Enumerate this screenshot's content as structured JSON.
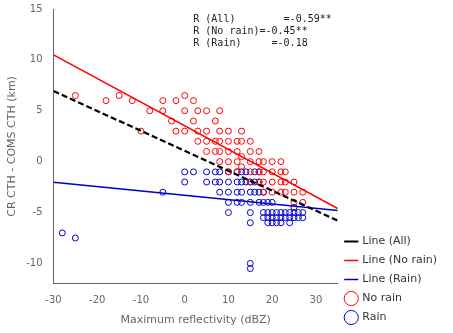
{
  "chart_data": {
    "type": "scatter",
    "xlabel": "Maximum reflectivity (dBZ)",
    "ylabel": "CR CTH - COMS CTH (km)",
    "xlim": [
      -30,
      35
    ],
    "ylim": [
      -12,
      15
    ],
    "xticks": [
      -30,
      -20,
      -10,
      0,
      10,
      20,
      30
    ],
    "yticks": [
      -10,
      -5,
      0,
      5,
      10,
      15
    ],
    "grid": false,
    "legend": "lower right",
    "annotations": [
      "R (All)        =-0.59**",
      "R (No rain)=-0.45**",
      "R (Rain)     =-0.18"
    ],
    "series": [
      {
        "name": "No rain",
        "type": "scatter",
        "marker": "circle",
        "color": "#FF0000",
        "x": [
          -25,
          -18,
          -15,
          -12,
          -10,
          -8,
          -5,
          -5,
          -3,
          -2,
          -2,
          0,
          0,
          0,
          2,
          2,
          3,
          3,
          3,
          5,
          5,
          5,
          5,
          7,
          7,
          7,
          8,
          8,
          8,
          8,
          8,
          10,
          10,
          10,
          10,
          10,
          12,
          12,
          12,
          12,
          13,
          13,
          13,
          13,
          15,
          15,
          15,
          15,
          15,
          17,
          17,
          17,
          17,
          18,
          18,
          18,
          18,
          20,
          20,
          20,
          20,
          22,
          22,
          22,
          22,
          23,
          23,
          23,
          25,
          25,
          25,
          27,
          27
        ],
        "values": [
          6.5,
          6.0,
          6.5,
          6.0,
          3.0,
          5.0,
          5.0,
          6.0,
          4.0,
          3.0,
          6.0,
          3.0,
          5.0,
          6.5,
          4.0,
          6.0,
          2.0,
          3.0,
          5.0,
          1.0,
          2.0,
          3.0,
          5.0,
          1.0,
          2.0,
          4.0,
          0.0,
          1.0,
          2.0,
          3.0,
          5.0,
          -1.0,
          0.0,
          1.0,
          2.0,
          3.0,
          -1.0,
          0.0,
          1.0,
          2.0,
          -0.5,
          0.5,
          2.0,
          3.0,
          -2.0,
          -1.0,
          0.0,
          1.0,
          2.0,
          -2.0,
          -1.0,
          0.0,
          1.0,
          -3.0,
          -2.0,
          -1.0,
          0.0,
          -3.0,
          -2.0,
          -1.0,
          0.0,
          -3.0,
          -2.0,
          -1.0,
          0.0,
          -3.0,
          -2.0,
          -1.0,
          -4.0,
          -3.0,
          -2.0,
          -4.0,
          -3.0
        ]
      },
      {
        "name": "Rain",
        "type": "scatter",
        "marker": "circle",
        "color": "#0000CC",
        "x": [
          -28,
          -25,
          -5,
          0,
          0,
          2,
          5,
          5,
          7,
          7,
          8,
          8,
          8,
          10,
          10,
          10,
          10,
          10,
          12,
          12,
          12,
          12,
          13,
          13,
          13,
          13,
          14,
          14,
          15,
          15,
          15,
          15,
          15,
          16,
          16,
          16,
          17,
          17,
          17,
          17,
          18,
          18,
          18,
          18,
          19,
          19,
          19,
          19,
          20,
          20,
          20,
          20,
          21,
          21,
          21,
          22,
          22,
          22,
          23,
          23,
          24,
          24,
          24,
          25,
          25,
          25,
          26,
          26,
          27,
          27,
          15,
          15
        ],
        "values": [
          -7.0,
          -7.5,
          -3.0,
          -2.0,
          -1.0,
          -1.0,
          -2.0,
          -1.0,
          -1.0,
          -2.0,
          -1.0,
          -2.0,
          -3.0,
          -1.0,
          -2.0,
          -3.0,
          -4.0,
          -5.0,
          -1.0,
          -2.0,
          -3.0,
          -4.0,
          -1.0,
          -2.0,
          -3.0,
          -4.0,
          -1.0,
          -2.0,
          -2.0,
          -3.0,
          -4.0,
          -5.0,
          -6.0,
          -1.0,
          -2.0,
          -3.0,
          -1.0,
          -2.0,
          -3.0,
          -4.0,
          -3.0,
          -4.0,
          -5.0,
          -5.5,
          -4.0,
          -5.0,
          -5.5,
          -6.0,
          -4.0,
          -5.0,
          -5.5,
          -6.0,
          -5.0,
          -5.5,
          -6.0,
          -5.0,
          -5.5,
          -6.0,
          -5.0,
          -5.5,
          -5.0,
          -5.5,
          -6.0,
          -4.5,
          -5.0,
          -5.5,
          -5.0,
          -5.5,
          -5.0,
          -5.5,
          -10.0,
          -10.5
        ]
      },
      {
        "name": "Line (All)",
        "type": "line",
        "line_style": "dashed",
        "color": "#000000",
        "x": [
          -30,
          35
        ],
        "values": [
          6.9441,
          -5.7955
        ]
      },
      {
        "name": "Line (No rain)",
        "type": "line",
        "line_style": "solid",
        "color": "#FF0000",
        "x": [
          -30,
          35
        ],
        "values": [
          10.5013,
          -4.6005
        ]
      },
      {
        "name": "Line (Rain)",
        "type": "line",
        "line_style": "solid",
        "color": "#0000CC",
        "x": [
          -30,
          35
        ],
        "values": [
          -2.0322,
          -4.7923
        ]
      }
    ]
  }
}
